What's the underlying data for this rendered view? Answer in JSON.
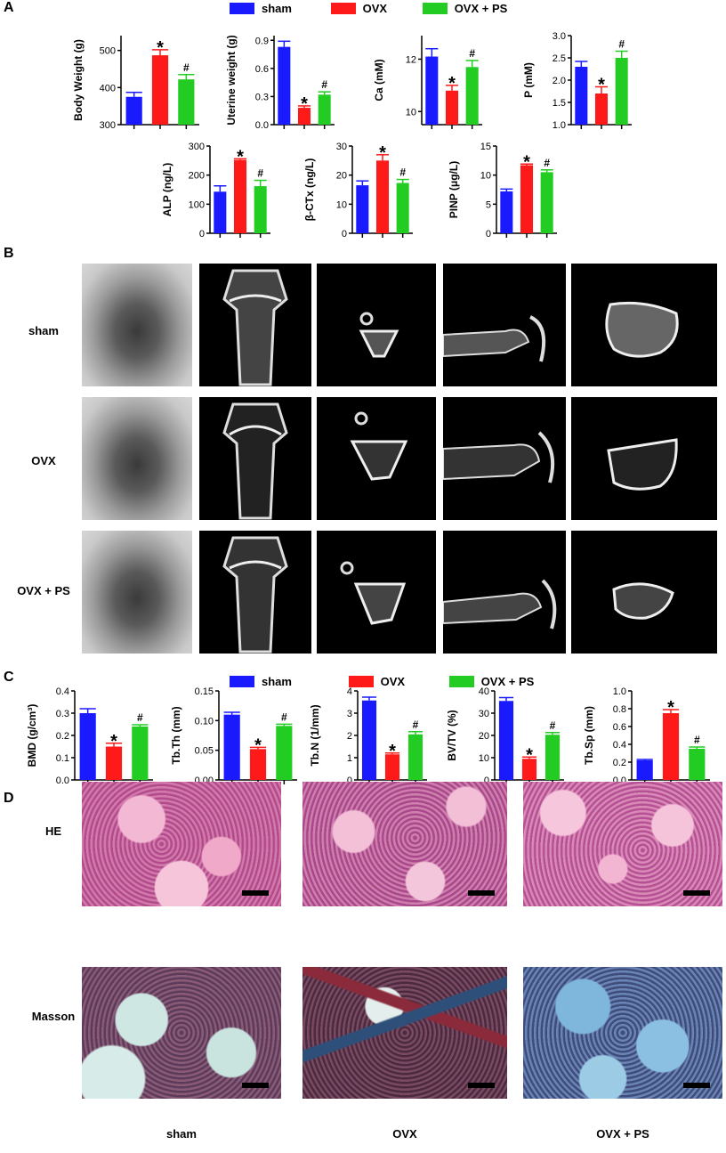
{
  "panels": {
    "A": "A",
    "B": "B",
    "C": "C",
    "D": "D"
  },
  "legend": {
    "items": [
      {
        "label": "sham",
        "color": "#1a1aff"
      },
      {
        "label": "OVX",
        "color": "#ff1a1a"
      },
      {
        "label": "OVX + PS",
        "color": "#22cc22"
      }
    ]
  },
  "colors": {
    "sham": "#1a1aff",
    "OVX": "#ff1a1a",
    "OVX_PS": "#22cc22"
  },
  "chart_data": [
    {
      "type": "bar",
      "ylabel": "Body Weight (g)",
      "categories": [
        "sham",
        "OVX",
        "OVX + PS"
      ],
      "values": [
        375,
        487,
        422
      ],
      "errors": [
        12,
        15,
        13
      ],
      "ylim": [
        300,
        540
      ],
      "yticks": [
        "300",
        "400",
        "500"
      ],
      "marks": [
        "",
        "*",
        "#"
      ]
    },
    {
      "type": "bar",
      "ylabel": "Uterine weight (g)",
      "categories": [
        "sham",
        "OVX",
        "OVX + PS"
      ],
      "values": [
        0.83,
        0.18,
        0.32
      ],
      "errors": [
        0.06,
        0.02,
        0.03
      ],
      "ylim": [
        0,
        0.95
      ],
      "yticks": [
        "0.0",
        "0.3",
        "0.6",
        "0.9"
      ],
      "marks": [
        "",
        "*",
        "#"
      ]
    },
    {
      "type": "bar",
      "ylabel": "Ca (mM)",
      "categories": [
        "sham",
        "OVX",
        "OVX + PS"
      ],
      "values": [
        12.1,
        10.8,
        11.7
      ],
      "errors": [
        0.3,
        0.2,
        0.25
      ],
      "ylim": [
        9.5,
        12.9
      ],
      "yticks": [
        "10",
        "12"
      ],
      "marks": [
        "",
        "*",
        "#"
      ]
    },
    {
      "type": "bar",
      "ylabel": "P (mM)",
      "categories": [
        "sham",
        "OVX",
        "OVX + PS"
      ],
      "values": [
        2.3,
        1.7,
        2.5
      ],
      "errors": [
        0.12,
        0.15,
        0.15
      ],
      "ylim": [
        1.0,
        3.0
      ],
      "yticks": [
        "1.0",
        "1.5",
        "2.0",
        "2.5",
        "3.0"
      ],
      "marks": [
        "",
        "*",
        "#"
      ]
    },
    {
      "type": "bar",
      "ylabel": "ALP (ng/L)",
      "categories": [
        "sham",
        "OVX",
        "OVX + PS"
      ],
      "values": [
        143,
        252,
        162
      ],
      "errors": [
        20,
        4,
        20
      ],
      "ylim": [
        0,
        300
      ],
      "yticks": [
        "0",
        "100",
        "200",
        "300"
      ],
      "marks": [
        "",
        "*",
        "#"
      ]
    },
    {
      "type": "bar",
      "ylabel": "β-CTx (ng/L)",
      "categories": [
        "sham",
        "OVX",
        "OVX + PS"
      ],
      "values": [
        16.5,
        25,
        17.3
      ],
      "errors": [
        1.5,
        2,
        1.2
      ],
      "ylim": [
        0,
        30
      ],
      "yticks": [
        "0",
        "10",
        "20",
        "30"
      ],
      "marks": [
        "",
        "*",
        "#"
      ]
    },
    {
      "type": "bar",
      "ylabel": "PINP (μg/L)",
      "categories": [
        "sham",
        "OVX",
        "OVX + PS"
      ],
      "values": [
        7.2,
        11.7,
        10.5
      ],
      "errors": [
        0.4,
        0.2,
        0.4
      ],
      "ylim": [
        0,
        15
      ],
      "yticks": [
        "0",
        "5",
        "10",
        "15"
      ],
      "marks": [
        "",
        "*",
        "#"
      ]
    },
    {
      "type": "bar",
      "ylabel": "BMD (g/cm³)",
      "categories": [
        "sham",
        "OVX",
        "OVX + PS"
      ],
      "values": [
        0.3,
        0.15,
        0.24
      ],
      "errors": [
        0.02,
        0.015,
        0.008
      ],
      "ylim": [
        0,
        0.4
      ],
      "yticks": [
        "0.0",
        "0.1",
        "0.2",
        "0.3",
        "0.4"
      ],
      "marks": [
        "",
        "*",
        "#"
      ]
    },
    {
      "type": "bar",
      "ylabel": "Tb.Th (mm)",
      "categories": [
        "sham",
        "OVX",
        "OVX + PS"
      ],
      "values": [
        0.11,
        0.052,
        0.091
      ],
      "errors": [
        0.004,
        0.003,
        0.003
      ],
      "ylim": [
        0,
        0.15
      ],
      "yticks": [
        "0.00",
        "0.05",
        "0.10",
        "0.15"
      ],
      "marks": [
        "",
        "*",
        "#"
      ]
    },
    {
      "type": "bar",
      "ylabel": "Tb.N (1/mm)",
      "categories": [
        "sham",
        "OVX",
        "OVX + PS"
      ],
      "values": [
        3.57,
        1.15,
        2.05
      ],
      "errors": [
        0.15,
        0.06,
        0.12
      ],
      "ylim": [
        0,
        4
      ],
      "yticks": [
        "0",
        "1",
        "2",
        "3",
        "4"
      ],
      "marks": [
        "",
        "*",
        "#"
      ]
    },
    {
      "type": "bar",
      "ylabel": "BV/TV (%)",
      "categories": [
        "sham",
        "OVX",
        "OVX + PS"
      ],
      "values": [
        35.5,
        9.5,
        20.3
      ],
      "errors": [
        1.5,
        0.8,
        1.0
      ],
      "ylim": [
        0,
        40
      ],
      "yticks": [
        "0",
        "10",
        "20",
        "30",
        "40"
      ],
      "marks": [
        "",
        "*",
        "#"
      ]
    },
    {
      "type": "bar",
      "ylabel": "Tb.Sp (mm)",
      "categories": [
        "sham",
        "OVX",
        "OVX + PS"
      ],
      "values": [
        0.22,
        0.75,
        0.35
      ],
      "errors": [
        0.01,
        0.04,
        0.02
      ],
      "ylim": [
        0,
        1.0
      ],
      "yticks": [
        "0.0",
        "0.2",
        "0.4",
        "0.6",
        "0.8",
        "1.0"
      ],
      "marks": [
        "",
        "*",
        "#"
      ]
    }
  ],
  "panel_b": {
    "rows": [
      "sham",
      "OVX",
      "OVX + PS"
    ]
  },
  "panel_d": {
    "rows": [
      "HE",
      "Masson"
    ],
    "columns": [
      "sham",
      "OVX",
      "OVX + PS"
    ]
  }
}
